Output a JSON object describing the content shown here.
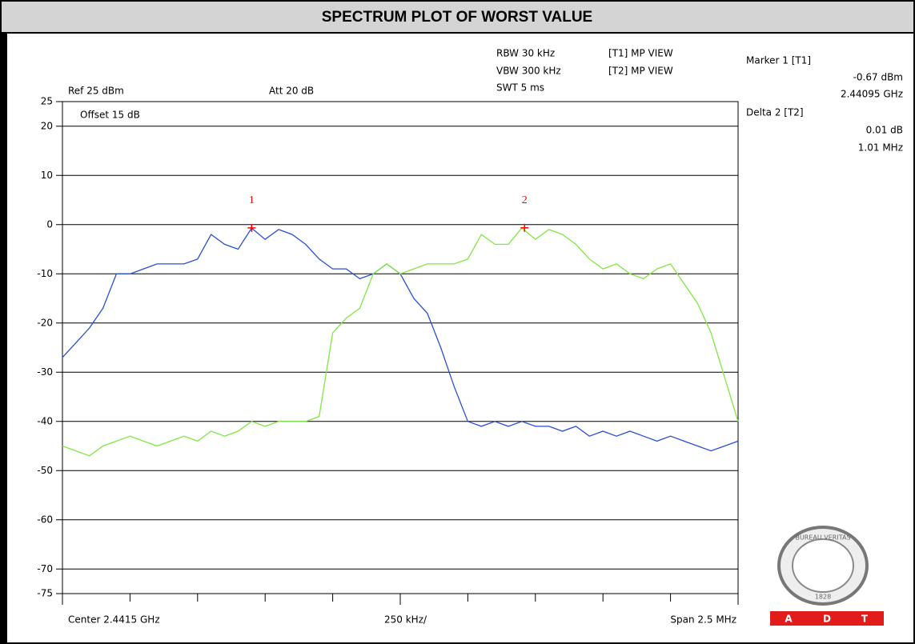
{
  "chart_data": {
    "type": "line",
    "title": "SPECTRUM PLOT OF WORST VALUE",
    "x": [
      2440.25,
      2440.3,
      2440.35,
      2440.4,
      2440.45,
      2440.5,
      2440.55,
      2440.6,
      2440.65,
      2440.7,
      2440.75,
      2440.8,
      2440.85,
      2440.9,
      2440.95,
      2441.0,
      2441.05,
      2441.1,
      2441.15,
      2441.2,
      2441.25,
      2441.3,
      2441.35,
      2441.4,
      2441.45,
      2441.5,
      2441.55,
      2441.6,
      2441.65,
      2441.7,
      2441.75,
      2441.8,
      2441.85,
      2441.9,
      2441.95,
      2442.0,
      2442.05,
      2442.1,
      2442.15,
      2442.2,
      2442.25,
      2442.3,
      2442.35,
      2442.4,
      2442.45,
      2442.5,
      2442.55,
      2442.6,
      2442.65,
      2442.7,
      2442.75
    ],
    "xlim": [
      2440.25,
      2442.75
    ],
    "series": [
      {
        "name": "[T1] MP VIEW",
        "color": "#2a4fd4",
        "values": [
          -27,
          -24,
          -21,
          -17,
          -10,
          -10,
          -9,
          -8,
          -8,
          -8,
          -7,
          -2,
          -4,
          -5,
          -0.7,
          -3,
          -1,
          -2,
          -4,
          -7,
          -9,
          -9,
          -11,
          -10,
          -8,
          -10,
          -15,
          -18,
          -25,
          -33,
          -40,
          -41,
          -40,
          -41,
          -40,
          -41,
          -41,
          -42,
          -41,
          -43,
          -42,
          -43,
          -42,
          -43,
          -44,
          -43,
          -44,
          -45,
          -46,
          -45,
          -44
        ]
      },
      {
        "name": "[T2] MP VIEW",
        "color": "#80e840",
        "values": [
          -45,
          -46,
          -47,
          -45,
          -44,
          -43,
          -44,
          -45,
          -44,
          -43,
          -44,
          -42,
          -43,
          -42,
          -40,
          -41,
          -40,
          -40,
          -40,
          -39,
          -22,
          -19,
          -17,
          -10,
          -8,
          -10,
          -9,
          -8,
          -8,
          -8,
          -7,
          -2,
          -4,
          -4,
          -0.7,
          -3,
          -1,
          -2,
          -4,
          -7,
          -9,
          -8,
          -10,
          -11,
          -9,
          -8,
          -12,
          -16,
          -22,
          -31,
          -40
        ]
      }
    ],
    "ylim": [
      -75,
      25
    ],
    "yticks": [
      25,
      20,
      10,
      0,
      -10,
      -20,
      -30,
      -40,
      -50,
      -60,
      -70,
      -75
    ],
    "grid": true,
    "markers": [
      {
        "label": "1",
        "x": 2440.95,
        "y": -0.67,
        "color": "#ff0000"
      },
      {
        "label": "2",
        "x": 2441.96,
        "y": -0.66,
        "color": "#ff0000"
      }
    ],
    "ref_level": "Ref 25 dBm",
    "attenuation": "Att  20 dB",
    "offset": "Offset 15 dB",
    "rbw": "RBW 30 kHz",
    "vbw": "VBW 300 kHz",
    "swt": "SWT 5 ms",
    "marker_header": "Marker 1 [T1]",
    "marker_value": "-0.67 dBm",
    "marker_freq": "2.44095 GHz",
    "delta_header": "Delta 2 [T2]",
    "delta_value": "0.01 dB",
    "delta_freq": "1.01 MHz",
    "center": "Center 2.4415 GHz",
    "per_div": "250 kHz/",
    "span": "Span 2.5 MHz"
  },
  "logo": {
    "top": "BUREAU VERITAS",
    "year": "1828",
    "letters": [
      "A",
      "D",
      "T"
    ]
  }
}
